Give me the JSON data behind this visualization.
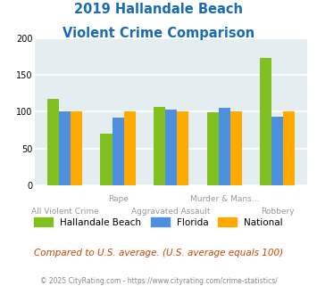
{
  "title_line1": "2019 Hallandale Beach",
  "title_line2": "Violent Crime Comparison",
  "top_labels": [
    "",
    "Rape",
    "",
    "Murder & Mans...",
    ""
  ],
  "bot_labels": [
    "All Violent Crime",
    "",
    "Aggravated Assault",
    "",
    "Robbery"
  ],
  "hallandale": [
    118,
    70,
    106,
    99,
    173
  ],
  "florida": [
    100,
    92,
    103,
    105,
    93
  ],
  "national": [
    100,
    100,
    100,
    100,
    100
  ],
  "colors": {
    "hallandale": "#80c020",
    "florida": "#4d90e0",
    "national": "#ffaa00"
  },
  "ylim": [
    0,
    200
  ],
  "yticks": [
    0,
    50,
    100,
    150,
    200
  ],
  "background_color": "#e4eef0",
  "title_color": "#1a6bb5",
  "subtitle_text": "Compared to U.S. average. (U.S. average equals 100)",
  "subtitle_color": "#cc4400",
  "footer_text": "© 2025 CityRating.com - https://www.cityrating.com/crime-statistics/",
  "footer_color": "#888888",
  "legend_labels": [
    "Hallandale Beach",
    "Florida",
    "National"
  ]
}
